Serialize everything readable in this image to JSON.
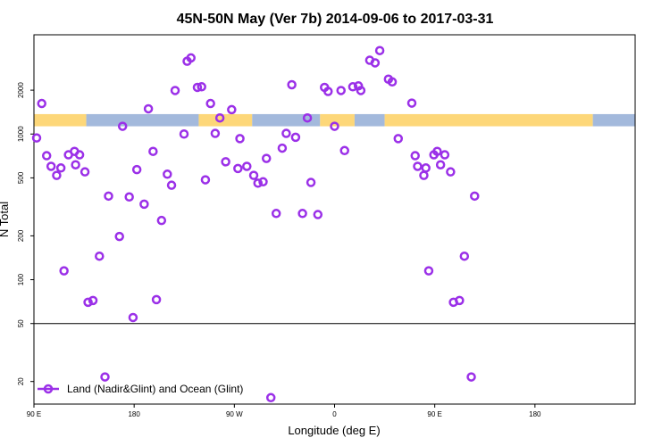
{
  "chart_data": {
    "type": "scatter",
    "title": "45N-50N May (Ver 7b)   2014-09-06 to 2017-03-31",
    "xlabel": "Longitude (deg E)",
    "ylabel": "N Total",
    "y_scale": "log",
    "xlim": [
      -90,
      180
    ],
    "ylim": [
      14,
      4800
    ],
    "x_ticks": [
      {
        "value": -90,
        "label": "90 E"
      },
      {
        "value": -45,
        "label": "180"
      },
      {
        "value": 0,
        "label": "90 W"
      },
      {
        "value": 45,
        "label": "0"
      },
      {
        "value": 90,
        "label": "90 E"
      },
      {
        "value": 135,
        "label": "180"
      }
    ],
    "y_ticks": [
      {
        "value": 20,
        "label": "20"
      },
      {
        "value": 50,
        "label": "50"
      },
      {
        "value": 100,
        "label": "100"
      },
      {
        "value": 200,
        "label": "200"
      },
      {
        "value": 500,
        "label": "500"
      },
      {
        "value": 1000,
        "label": "1000"
      },
      {
        "value": 2000,
        "label": "2000"
      }
    ],
    "reference_line": 50,
    "surface_band": {
      "y_low": 1130,
      "y_high": 1370,
      "land_color": "#fdd779",
      "ocean_color": "#a3b9dc",
      "segments": [
        {
          "type": "land",
          "x0": -90,
          "x1": -66.5
        },
        {
          "type": "ocean",
          "x0": -66.5,
          "x1": -16
        },
        {
          "type": "land",
          "x0": -16,
          "x1": 8
        },
        {
          "type": "ocean",
          "x0": 8,
          "x1": 38.5
        },
        {
          "type": "land",
          "x0": 38.5,
          "x1": 54
        },
        {
          "type": "ocean",
          "x0": 54,
          "x1": 67.5
        },
        {
          "type": "land",
          "x0": 67.5,
          "x1": 161
        },
        {
          "type": "ocean",
          "x0": 161,
          "x1": 180
        }
      ]
    },
    "series": [
      {
        "name": "Land (Nadir&Glint) and Ocean (Glint)",
        "color": "#9b30e8",
        "marker": "open-circle",
        "points": [
          [
            -88.8,
            940
          ],
          [
            -86.5,
            1620
          ],
          [
            -84.3,
            710
          ],
          [
            -82.3,
            600
          ],
          [
            -79.8,
            520
          ],
          [
            -77.9,
            585
          ],
          [
            -76.5,
            115
          ],
          [
            -74.5,
            720
          ],
          [
            -71.8,
            760
          ],
          [
            -71.3,
            615
          ],
          [
            -69.5,
            720
          ],
          [
            -67.1,
            550
          ],
          [
            -65.7,
            70
          ],
          [
            -63.5,
            72
          ],
          [
            -60.6,
            145
          ],
          [
            -58.1,
            21.5
          ],
          [
            -56.5,
            375
          ],
          [
            -51.6,
            198
          ],
          [
            -50.2,
            1130
          ],
          [
            -47.2,
            370
          ],
          [
            -45.5,
            55
          ],
          [
            -43.8,
            570
          ],
          [
            -40.5,
            330
          ],
          [
            -38.6,
            1490
          ],
          [
            -36.5,
            760
          ],
          [
            -35,
            73
          ],
          [
            -32.7,
            255
          ],
          [
            -30.1,
            530
          ],
          [
            -28.2,
            445
          ],
          [
            -26.6,
            1990
          ],
          [
            -22.6,
            1000
          ],
          [
            -21.2,
            3160
          ],
          [
            -19.5,
            3330
          ],
          [
            -16.6,
            2090
          ],
          [
            -14.7,
            2110
          ],
          [
            -13,
            485
          ],
          [
            -10.7,
            1620
          ],
          [
            -8.6,
            1010
          ],
          [
            -6.5,
            1290
          ],
          [
            -3.9,
            645
          ],
          [
            -1.2,
            1470
          ],
          [
            1.6,
            580
          ],
          [
            2.5,
            930
          ],
          [
            5.6,
            600
          ],
          [
            8.7,
            520
          ],
          [
            10.6,
            460
          ],
          [
            12.9,
            470
          ],
          [
            14.4,
            680
          ],
          [
            16.4,
            15.5
          ],
          [
            18.8,
            285
          ],
          [
            21.5,
            800
          ],
          [
            23.3,
            1010
          ],
          [
            25.8,
            2180
          ],
          [
            27.5,
            950
          ],
          [
            30.6,
            285
          ],
          [
            32.8,
            1290
          ],
          [
            34.4,
            465
          ],
          [
            37.5,
            280
          ],
          [
            40.5,
            2090
          ],
          [
            42.1,
            1960
          ],
          [
            45,
            1130
          ],
          [
            47.9,
            1990
          ],
          [
            49.5,
            770
          ],
          [
            53.2,
            2110
          ],
          [
            55.7,
            2140
          ],
          [
            56.8,
            1990
          ],
          [
            60.8,
            3210
          ],
          [
            63.2,
            3080
          ],
          [
            65.3,
            3740
          ],
          [
            69.2,
            2380
          ],
          [
            70.9,
            2280
          ],
          [
            73.6,
            930
          ],
          [
            79.7,
            1630
          ],
          [
            81.2,
            710
          ],
          [
            82.3,
            600
          ],
          [
            85.1,
            520
          ],
          [
            86,
            585
          ],
          [
            87.3,
            115
          ],
          [
            89.6,
            720
          ],
          [
            91.1,
            760
          ],
          [
            92.6,
            615
          ],
          [
            94.5,
            720
          ],
          [
            97.1,
            550
          ],
          [
            98.4,
            70
          ],
          [
            101.1,
            72
          ],
          [
            103.3,
            145
          ],
          [
            106.4,
            21.5
          ],
          [
            107.9,
            375
          ]
        ]
      }
    ],
    "legend": {
      "position": "bottom-left",
      "entries": [
        "Land (Nadir&Glint) and Ocean (Glint)"
      ]
    },
    "grid": false
  }
}
